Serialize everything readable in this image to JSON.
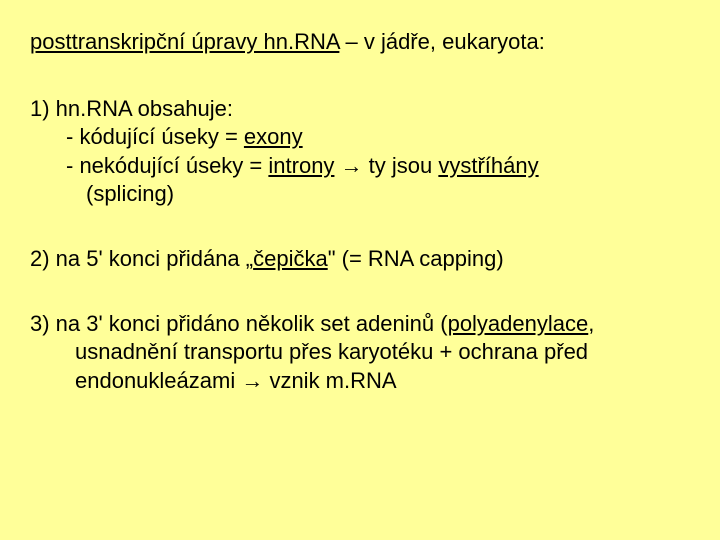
{
  "title": {
    "underlined": "posttranskripční úpravy hn.RNA",
    "rest": " – v jádře, eukaryota:"
  },
  "sec1": {
    "head": "1) hn.RNA obsahuje:",
    "b1p": "-  kódující úseky = ",
    "b1u": "exony",
    "b2p": "-  nekódující úseky = ",
    "b2u1": "introny",
    "b2mid": " → ty jsou ",
    "b2u2": "vystříhány",
    "b2tail": "(splicing)"
  },
  "sec2": {
    "p1a": "2) na 5' konci přidána „",
    "p1u": "čepička",
    "p1b": "\" (= RNA capping)"
  },
  "sec3": {
    "p1a": "3) na 3' konci přidáno několik set adeninů (",
    "p1u": "polyadenylace",
    "p1b": ", usnadnění transportu přes karyotéku + ochrana před endonukleázami → vznik m.RNA"
  }
}
